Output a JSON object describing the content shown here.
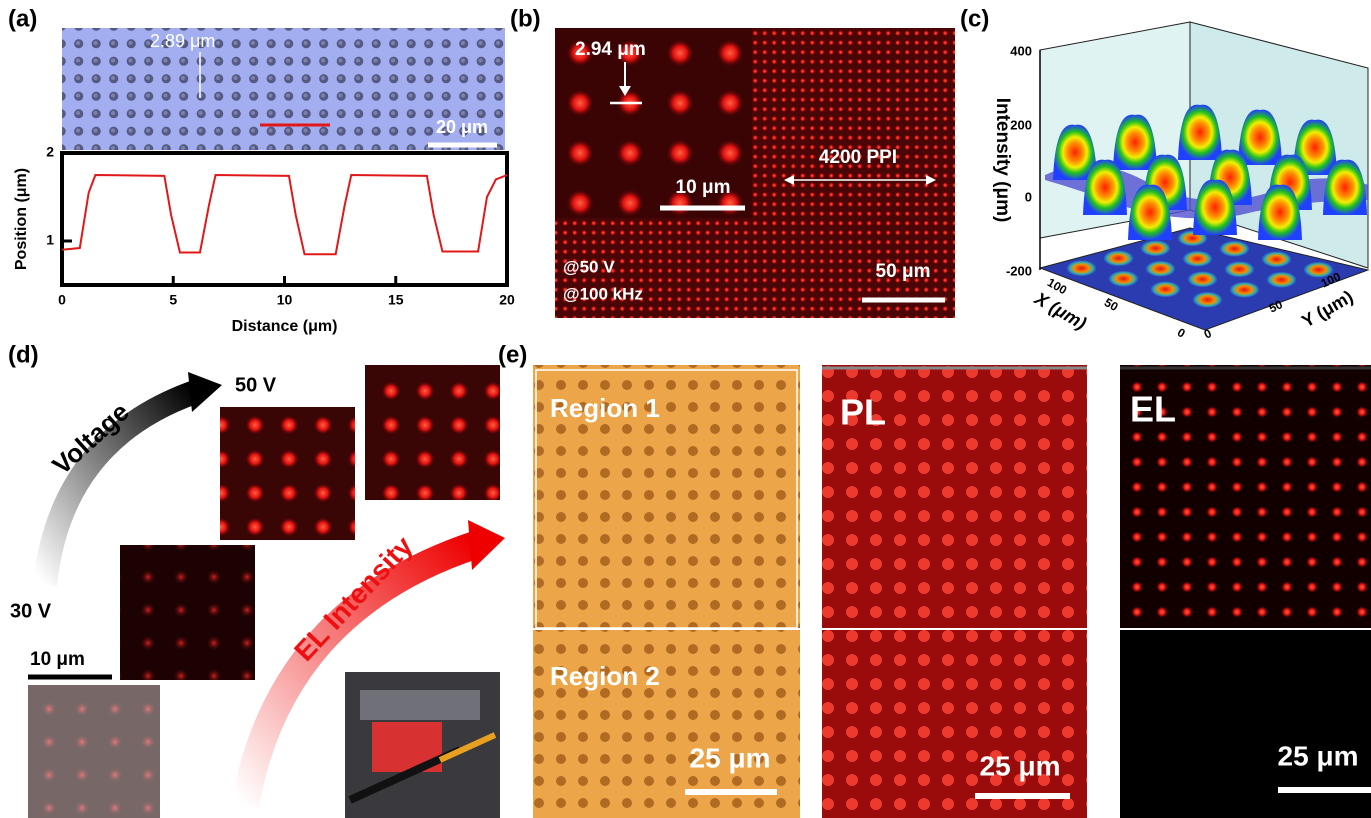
{
  "panels": {
    "a": "(a)",
    "b": "(b)",
    "c": "(c)",
    "d": "(d)",
    "e": "(e)"
  },
  "panel_a": {
    "annotation": "2.89 μm",
    "scale_bar": "20 μm"
  },
  "chart_data": {
    "type": "line",
    "xlabel": "Distance (μm)",
    "ylabel": "Position (μm)",
    "xlim": [
      0,
      20
    ],
    "ylim": [
      0.5,
      2
    ],
    "xticks": [
      0,
      5,
      10,
      15,
      20
    ],
    "yticks": [
      1,
      2
    ],
    "series": [
      {
        "color": "#e01818",
        "x": [
          0,
          0.8,
          1.2,
          1.5,
          4.6,
          4.9,
          5.3,
          6.2,
          6.6,
          6.9,
          10.2,
          10.5,
          10.9,
          12.3,
          12.7,
          13.0,
          16.4,
          16.7,
          17.1,
          18.7,
          19.1,
          19.5,
          20
        ],
        "values": [
          0.9,
          0.92,
          1.55,
          1.75,
          1.74,
          1.3,
          0.87,
          0.87,
          1.4,
          1.75,
          1.74,
          1.3,
          0.85,
          0.85,
          1.4,
          1.75,
          1.74,
          1.3,
          0.88,
          0.88,
          1.5,
          1.7,
          1.75
        ]
      }
    ]
  },
  "panel_b": {
    "annotation": "2.94 μm",
    "inset_scale_bar": "10 μm",
    "resolution": "4200 PPI",
    "conditions": [
      "@50 V",
      "@100 kHz"
    ],
    "scale_bar": "50 μm"
  },
  "panel_c": {
    "zlabel": "Intensity (μm)",
    "zticks": [
      "400",
      "200",
      "0",
      "-200"
    ],
    "xlabel": "X (μm)",
    "xticks": [
      "100",
      "50",
      "0"
    ],
    "ylabel": "Y (μm)",
    "yticks": [
      "0",
      "50",
      "100"
    ]
  },
  "panel_d": {
    "arrow_voltage": "Voltage",
    "arrow_intensity": "EL Intensity",
    "voltage_high": "50 V",
    "voltage_low": "30 V",
    "scale_bar": "10 μm"
  },
  "panel_e": {
    "labels": [
      "Region 1",
      "Region 2",
      "PL",
      "EL"
    ],
    "scale_bars": [
      "25 μm",
      "25 μm",
      "25 μm"
    ]
  }
}
